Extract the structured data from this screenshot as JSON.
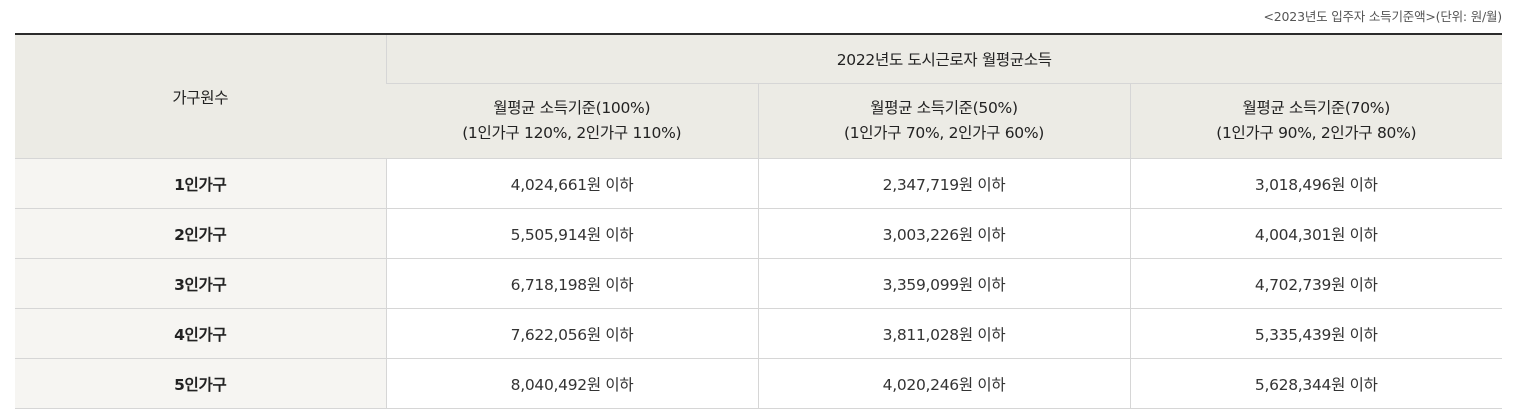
{
  "caption": "<2023년도 입주자 소득기준액>(단위: 원/월)",
  "header": {
    "household_label": "가구원수",
    "group_label": "2022년도 도시근로자 월평균소득",
    "columns": [
      {
        "line1": "월평균 소득기준(100%)",
        "line2": "(1인가구 120%, 2인가구 110%)"
      },
      {
        "line1": "월평균 소득기준(50%)",
        "line2": "(1인가구 70%, 2인가구 60%)"
      },
      {
        "line1": "월평균 소득기준(70%)",
        "line2": "(1인가구 90%, 2인가구 80%)"
      }
    ]
  },
  "rows": [
    {
      "label": "1인가구",
      "values": [
        "4,024,661원 이하",
        "2,347,719원 이하",
        "3,018,496원 이하"
      ]
    },
    {
      "label": "2인가구",
      "values": [
        "5,505,914원 이하",
        "3,003,226원 이하",
        "4,004,301원 이하"
      ]
    },
    {
      "label": "3인가구",
      "values": [
        "6,718,198원 이하",
        "3,359,099원 이하",
        "4,702,739원 이하"
      ]
    },
    {
      "label": "4인가구",
      "values": [
        "7,622,056원 이하",
        "3,811,028원 이하",
        "5,335,439원 이하"
      ]
    },
    {
      "label": "5인가구",
      "values": [
        "8,040,492원 이하",
        "4,020,246원 이하",
        "5,628,344원 이하"
      ]
    }
  ]
}
